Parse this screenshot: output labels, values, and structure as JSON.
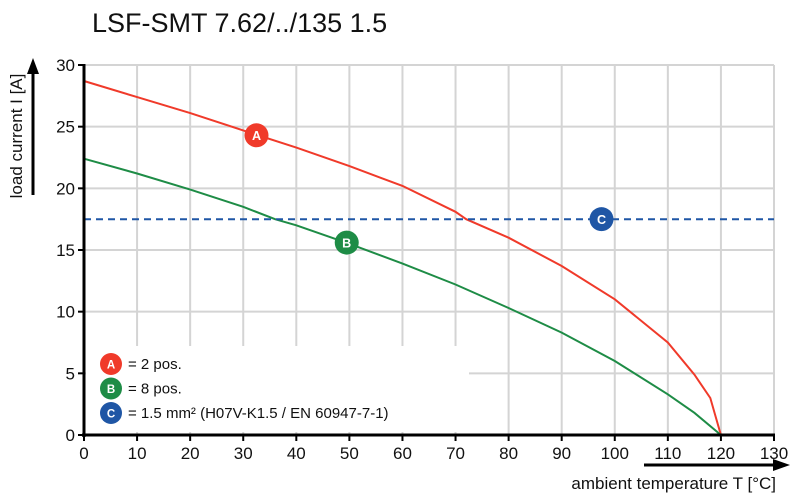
{
  "chart_data": {
    "type": "line",
    "title": "LSF-SMT 7.62/../135 1.5",
    "xlabel": "ambient temperature T [°C]",
    "ylabel": "load current I [A]",
    "xlim": [
      0,
      130
    ],
    "ylim": [
      0,
      30
    ],
    "xticks": [
      0,
      10,
      20,
      30,
      40,
      50,
      60,
      70,
      80,
      90,
      100,
      110,
      120,
      130
    ],
    "yticks": [
      0,
      5,
      10,
      15,
      20,
      25,
      30
    ],
    "grid": true,
    "series": [
      {
        "marker": "A",
        "color": "#f03a2a",
        "x": [
          0,
          10,
          20,
          30,
          40,
          50,
          60,
          70,
          72,
          80,
          90,
          100,
          110,
          115,
          118,
          120
        ],
        "y": [
          28.7,
          27.4,
          26.1,
          24.7,
          23.3,
          21.8,
          20.2,
          18.1,
          17.5,
          16.0,
          13.7,
          11.0,
          7.5,
          4.9,
          3.0,
          0
        ]
      },
      {
        "marker": "B",
        "color": "#1e8c46",
        "x": [
          0,
          10,
          20,
          30,
          36,
          40,
          50,
          60,
          70,
          80,
          90,
          100,
          110,
          115,
          120
        ],
        "y": [
          22.4,
          21.2,
          19.9,
          18.5,
          17.5,
          17.0,
          15.5,
          13.9,
          12.2,
          10.3,
          8.3,
          6.0,
          3.3,
          1.8,
          0
        ]
      },
      {
        "marker": "C",
        "color": "#1f56a5",
        "style": "dashed",
        "x": [
          0,
          130
        ],
        "y": [
          17.5,
          17.5
        ]
      }
    ],
    "markers": [
      {
        "label": "A",
        "x": 32.5,
        "y": 24.3,
        "color": "#f03a2a"
      },
      {
        "label": "B",
        "x": 49.5,
        "y": 15.6,
        "color": "#1e8c46"
      },
      {
        "label": "C",
        "x": 97.5,
        "y": 17.5,
        "color": "#1f56a5"
      }
    ],
    "legend": {
      "placement": "bottom-left",
      "entries": [
        {
          "marker": "A",
          "text": "= 2 pos.",
          "color": "#f03a2a"
        },
        {
          "marker": "B",
          "text": "= 8 pos.",
          "color": "#1e8c46"
        },
        {
          "marker": "C",
          "text": "= 1.5 mm² (H07V-K1.5 / EN 60947-7-1)",
          "color": "#1f56a5"
        }
      ]
    }
  }
}
